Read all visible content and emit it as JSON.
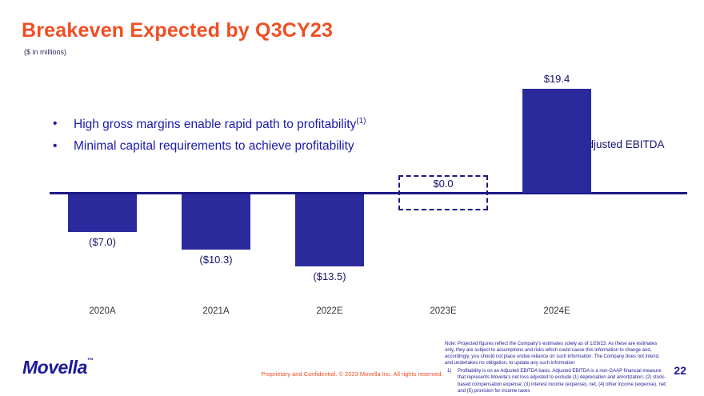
{
  "slide": {
    "title": "Breakeven Expected by Q3CY23",
    "subtitle": "($ in millions)",
    "bullets": [
      {
        "text": "High gross margins enable rapid path to profitability",
        "sup": "(1)"
      },
      {
        "text": "Minimal capital requirements to achieve profitability",
        "sup": ""
      }
    ],
    "page_number": "22"
  },
  "colors": {
    "accent_orange": "#F04E23",
    "navy_text": "#1D1A96",
    "bar_fill": "#2B2A9D"
  },
  "chart_data": {
    "type": "bar",
    "categories": [
      "2020A",
      "2021A",
      "2022E",
      "2023E",
      "2024E"
    ],
    "values": [
      -7.0,
      -10.3,
      -13.5,
      0.0,
      19.4
    ],
    "labels": [
      "($7.0)",
      "($10.3)",
      "($13.5)",
      "$0.0",
      "$19.4"
    ],
    "dashed_placeholder_index": 3,
    "series_label": "Adjusted EBITDA",
    "title": "",
    "xlabel": "",
    "ylabel": "",
    "ylim": [
      -16,
      22
    ],
    "grid": false,
    "legend_position": "right-of-last-bar",
    "bar_color": "#2B2A9D"
  },
  "footer": {
    "logo_text": "Movella",
    "logo_tm": "™",
    "confidential": "Proprietary and Confidential. © 2023 Movella Inc. All rights reserved.",
    "note": "Note: Projected figures reflect the Company's estimates solely as of 1/29/23. As these are estimates only, they are subject to assumptions and risks which could cause this information to change and, accordingly, you should not place undue reliance on such information. The Company does not intend, and undertakes no obligation, to update any such information",
    "footnote_number": "1)",
    "footnote": "Profitability is on an Adjusted EBITDA basis. Adjusted EBITDA is a non-GAAP financial measure that represents Movella's net loss adjusted to exclude (1) depreciation and amortization; (2) stock-based compensation expense; (3) interest income (expense), net; (4) other income (expense), net; and (5) provision for income taxes"
  }
}
